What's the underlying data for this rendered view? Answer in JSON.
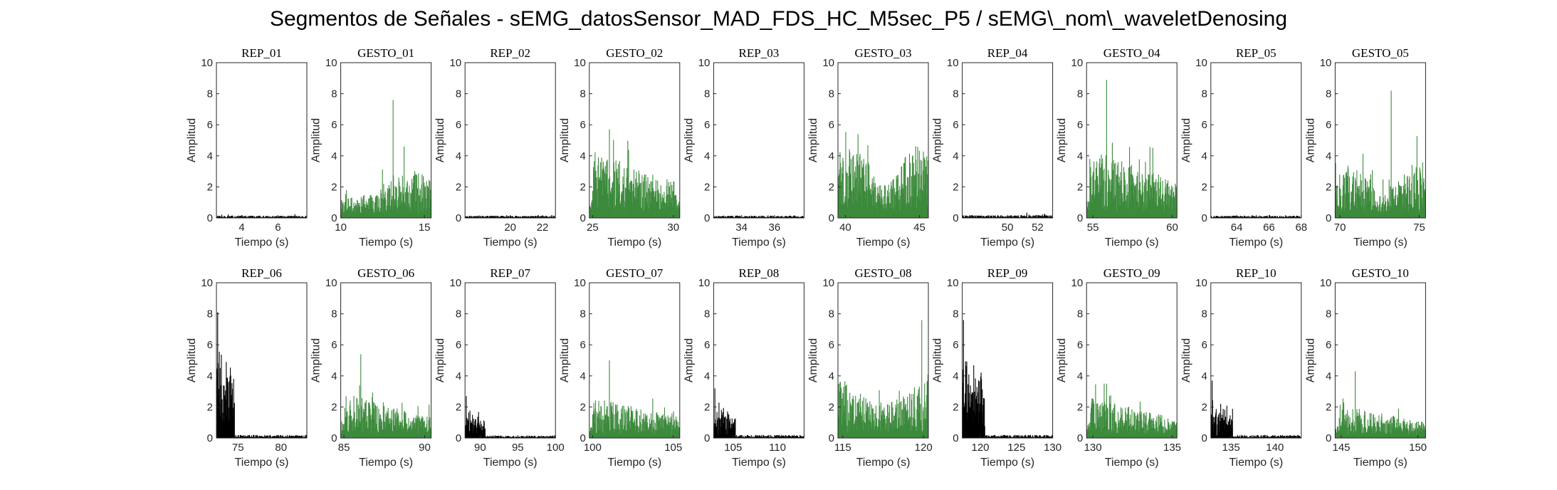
{
  "figure_title": "Segmentos de Señales - sEMG_datosSensor_MAD_FDS_HC_M5sec_P5 / sEMG\\_nom\\_waveletDenosing",
  "colors": {
    "rep": "#000000",
    "gesto": "#3c8a3c",
    "axis": "#262626"
  },
  "chart_data": [
    {
      "type": "bar",
      "title": "REP_01",
      "xlabel": "Tiempo (s)",
      "ylabel": "Amplitud",
      "xlim": [
        2.6,
        7.6
      ],
      "ylim": [
        0,
        10
      ],
      "xticks": [
        4,
        6
      ],
      "yticks": [
        0,
        2,
        4,
        6,
        8,
        10
      ],
      "color": "rep",
      "amplitude": {
        "profile": "flat",
        "base": 0.08,
        "peak": 0.25
      }
    },
    {
      "type": "bar",
      "title": "GESTO_01",
      "xlabel": "Tiempo (s)",
      "ylabel": "Amplitud",
      "xlim": [
        10,
        15.4
      ],
      "ylim": [
        0,
        10
      ],
      "xticks": [
        10,
        15
      ],
      "yticks": [
        0,
        2,
        4,
        6,
        8,
        10
      ],
      "color": "gesto",
      "amplitude": {
        "profile": "rising",
        "base": 1.2,
        "peak": 7.6
      }
    },
    {
      "type": "bar",
      "title": "REP_02",
      "xlabel": "Tiempo (s)",
      "ylabel": "Amplitud",
      "xlim": [
        17.2,
        22.8
      ],
      "ylim": [
        0,
        10
      ],
      "xticks": [
        20,
        22
      ],
      "yticks": [
        0,
        2,
        4,
        6,
        8,
        10
      ],
      "color": "rep",
      "amplitude": {
        "profile": "flat",
        "base": 0.08,
        "peak": 0.2
      }
    },
    {
      "type": "bar",
      "title": "GESTO_02",
      "xlabel": "Tiempo (s)",
      "ylabel": "Amplitud",
      "xlim": [
        24.8,
        30.4
      ],
      "ylim": [
        0,
        10
      ],
      "xticks": [
        25,
        30
      ],
      "yticks": [
        0,
        2,
        4,
        6,
        8,
        10
      ],
      "color": "gesto",
      "amplitude": {
        "profile": "front",
        "base": 1.8,
        "peak": 5.7
      }
    },
    {
      "type": "bar",
      "title": "REP_03",
      "xlabel": "Tiempo (s)",
      "ylabel": "Amplitud",
      "xlim": [
        32.3,
        37.8
      ],
      "ylim": [
        0,
        10
      ],
      "xticks": [
        34,
        36
      ],
      "yticks": [
        0,
        2,
        4,
        6,
        8,
        10
      ],
      "color": "rep",
      "amplitude": {
        "profile": "flat",
        "base": 0.08,
        "peak": 0.2
      }
    },
    {
      "type": "bar",
      "title": "GESTO_03",
      "xlabel": "Tiempo (s)",
      "ylabel": "Amplitud",
      "xlim": [
        39.5,
        45.6
      ],
      "ylim": [
        0,
        10
      ],
      "xticks": [
        40,
        45
      ],
      "yticks": [
        0,
        2,
        4,
        6,
        8,
        10
      ],
      "color": "gesto",
      "amplitude": {
        "profile": "even",
        "base": 1.9,
        "peak": 5.4
      }
    },
    {
      "type": "bar",
      "title": "REP_04",
      "xlabel": "Tiempo (s)",
      "ylabel": "Amplitud",
      "xlim": [
        47,
        53
      ],
      "ylim": [
        0,
        10
      ],
      "xticks": [
        50,
        52
      ],
      "yticks": [
        0,
        2,
        4,
        6,
        8,
        10
      ],
      "color": "rep",
      "amplitude": {
        "profile": "flat",
        "base": 0.1,
        "peak": 0.35
      }
    },
    {
      "type": "bar",
      "title": "GESTO_04",
      "xlabel": "Tiempo (s)",
      "ylabel": "Amplitud",
      "xlim": [
        54.6,
        60.3
      ],
      "ylim": [
        0,
        10
      ],
      "xticks": [
        55,
        60
      ],
      "yticks": [
        0,
        2,
        4,
        6,
        8,
        10
      ],
      "color": "gesto",
      "amplitude": {
        "profile": "front",
        "base": 1.9,
        "peak": 8.9
      }
    },
    {
      "type": "bar",
      "title": "REP_05",
      "xlabel": "Tiempo (s)",
      "ylabel": "Amplitud",
      "xlim": [
        62.4,
        68
      ],
      "ylim": [
        0,
        10
      ],
      "xticks": [
        64,
        66,
        68
      ],
      "yticks": [
        0,
        2,
        4,
        6,
        8,
        10
      ],
      "color": "rep",
      "amplitude": {
        "profile": "flat",
        "base": 0.08,
        "peak": 0.22
      }
    },
    {
      "type": "bar",
      "title": "GESTO_05",
      "xlabel": "Tiempo (s)",
      "ylabel": "Amplitud",
      "xlim": [
        69.7,
        75.4
      ],
      "ylim": [
        0,
        10
      ],
      "xticks": [
        70,
        75
      ],
      "yticks": [
        0,
        2,
        4,
        6,
        8,
        10
      ],
      "color": "gesto",
      "amplitude": {
        "profile": "even",
        "base": 1.4,
        "peak": 8.2
      }
    },
    {
      "type": "bar",
      "title": "REP_06",
      "xlabel": "Tiempo (s)",
      "ylabel": "Amplitud",
      "xlim": [
        72.5,
        83
      ],
      "ylim": [
        0,
        10
      ],
      "xticks": [
        75,
        80
      ],
      "yticks": [
        0,
        2,
        4,
        6,
        8,
        10
      ],
      "color": "rep",
      "amplitude": {
        "profile": "burst",
        "base": 0.1,
        "peak": 8.1,
        "burst_end": 0.2
      }
    },
    {
      "type": "bar",
      "title": "GESTO_06",
      "xlabel": "Tiempo (s)",
      "ylabel": "Amplitud",
      "xlim": [
        84.8,
        90.4
      ],
      "ylim": [
        0,
        10
      ],
      "xticks": [
        85,
        90
      ],
      "yticks": [
        0,
        2,
        4,
        6,
        8,
        10
      ],
      "color": "gesto",
      "amplitude": {
        "profile": "decay",
        "base": 1.2,
        "peak": 5.4
      }
    },
    {
      "type": "bar",
      "title": "REP_07",
      "xlabel": "Tiempo (s)",
      "ylabel": "Amplitud",
      "xlim": [
        88,
        100
      ],
      "ylim": [
        0,
        10
      ],
      "xticks": [
        90,
        95,
        100
      ],
      "yticks": [
        0,
        2,
        4,
        6,
        8,
        10
      ],
      "color": "rep",
      "amplitude": {
        "profile": "burst",
        "base": 0.08,
        "peak": 2.7,
        "burst_end": 0.22
      }
    },
    {
      "type": "bar",
      "title": "GESTO_07",
      "xlabel": "Tiempo (s)",
      "ylabel": "Amplitud",
      "xlim": [
        99.8,
        105.4
      ],
      "ylim": [
        0,
        10
      ],
      "xticks": [
        100,
        105
      ],
      "yticks": [
        0,
        2,
        4,
        6,
        8,
        10
      ],
      "color": "gesto",
      "amplitude": {
        "profile": "front",
        "base": 1.1,
        "peak": 5
      }
    },
    {
      "type": "bar",
      "title": "REP_08",
      "xlabel": "Tiempo (s)",
      "ylabel": "Amplitud",
      "xlim": [
        102.8,
        113
      ],
      "ylim": [
        0,
        10
      ],
      "xticks": [
        105,
        110
      ],
      "yticks": [
        0,
        2,
        4,
        6,
        8,
        10
      ],
      "color": "rep",
      "amplitude": {
        "profile": "burst",
        "base": 0.1,
        "peak": 3.2,
        "burst_end": 0.24
      }
    },
    {
      "type": "bar",
      "title": "GESTO_08",
      "xlabel": "Tiempo (s)",
      "ylabel": "Amplitud",
      "xlim": [
        114.7,
        120.3
      ],
      "ylim": [
        0,
        10
      ],
      "xticks": [
        115,
        120
      ],
      "yticks": [
        0,
        2,
        4,
        6,
        8,
        10
      ],
      "color": "gesto",
      "amplitude": {
        "profile": "u",
        "base": 1.5,
        "peak": 7.6
      }
    },
    {
      "type": "bar",
      "title": "REP_09",
      "xlabel": "Tiempo (s)",
      "ylabel": "Amplitud",
      "xlim": [
        117.5,
        130
      ],
      "ylim": [
        0,
        10
      ],
      "xticks": [
        120,
        125,
        130
      ],
      "yticks": [
        0,
        2,
        4,
        6,
        8,
        10
      ],
      "color": "rep",
      "amplitude": {
        "profile": "burst",
        "base": 0.1,
        "peak": 7.6,
        "burst_end": 0.25
      }
    },
    {
      "type": "bar",
      "title": "GESTO_09",
      "xlabel": "Tiempo (s)",
      "ylabel": "Amplitud",
      "xlim": [
        129.6,
        135.3
      ],
      "ylim": [
        0,
        10
      ],
      "xticks": [
        130,
        135
      ],
      "yticks": [
        0,
        2,
        4,
        6,
        8,
        10
      ],
      "color": "gesto",
      "amplitude": {
        "profile": "decay",
        "base": 1.1,
        "peak": 3.5
      }
    },
    {
      "type": "bar",
      "title": "REP_10",
      "xlabel": "Tiempo (s)",
      "ylabel": "Amplitud",
      "xlim": [
        132.7,
        143
      ],
      "ylim": [
        0,
        10
      ],
      "xticks": [
        135,
        140
      ],
      "yticks": [
        0,
        2,
        4,
        6,
        8,
        10
      ],
      "color": "rep",
      "amplitude": {
        "profile": "burst",
        "base": 0.1,
        "peak": 3.7,
        "burst_end": 0.24
      }
    },
    {
      "type": "bar",
      "title": "GESTO_10",
      "xlabel": "Tiempo (s)",
      "ylabel": "Amplitud",
      "xlim": [
        144.6,
        150.5
      ],
      "ylim": [
        0,
        10
      ],
      "xticks": [
        145,
        150
      ],
      "yticks": [
        0,
        2,
        4,
        6,
        8,
        10
      ],
      "color": "gesto",
      "amplitude": {
        "profile": "decay",
        "base": 0.9,
        "peak": 4.3
      }
    }
  ]
}
